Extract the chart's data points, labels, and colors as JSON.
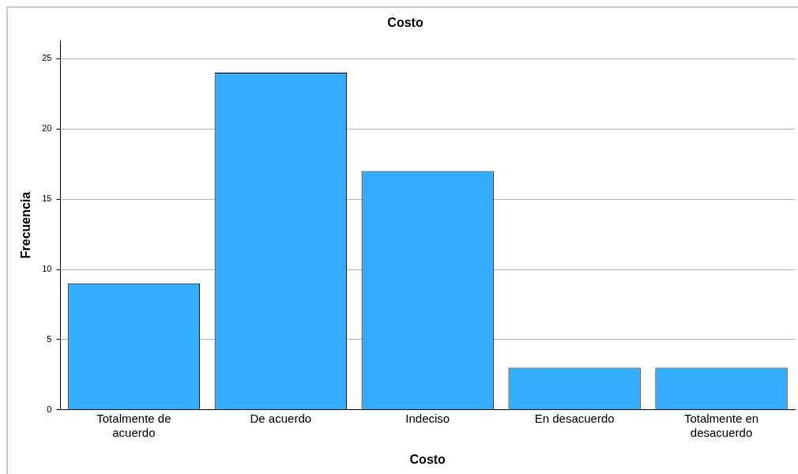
{
  "chart_data": {
    "type": "bar",
    "title": "Costo",
    "xlabel": "Costo",
    "ylabel": "Frecuencia",
    "categories": [
      "Totalmente de acuerdo",
      "De acuerdo",
      "Indeciso",
      "En desacuerdo",
      "Totalmente en desacuerdo"
    ],
    "values": [
      9,
      24,
      17,
      3,
      3
    ],
    "color": "#33adff",
    "ylim": [
      0,
      26.3
    ],
    "yticks": [
      0,
      5,
      10,
      15,
      20,
      25
    ],
    "grid": "y",
    "legend": false
  }
}
